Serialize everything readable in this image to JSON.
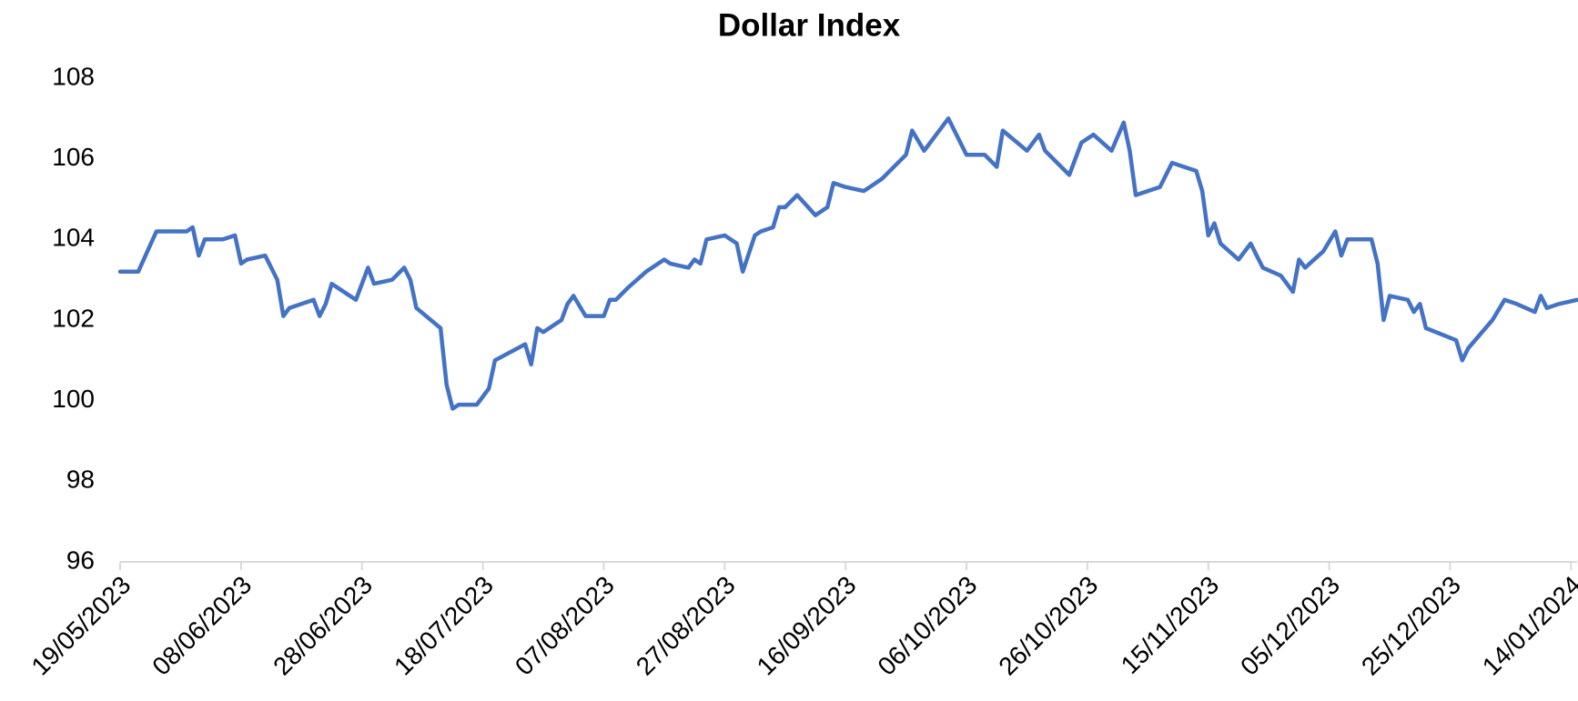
{
  "chart_data": {
    "type": "line",
    "title": "Dollar Index",
    "color": "#4472c4",
    "grid": false,
    "xlim": [
      "19/05/2023",
      "15/01/2024"
    ],
    "xticks": [
      "19/05/2023",
      "08/06/2023",
      "28/06/2023",
      "18/07/2023",
      "07/08/2023",
      "27/08/2023",
      "16/09/2023",
      "06/10/2023",
      "26/10/2023",
      "15/11/2023",
      "05/12/2023",
      "25/12/2023",
      "14/01/2024"
    ],
    "ylim": [
      96,
      108
    ],
    "yticks": [
      96,
      98,
      100,
      102,
      104,
      106,
      108
    ],
    "x": [
      "19/05/2023",
      "22/05/2023",
      "25/05/2023",
      "30/05/2023",
      "31/05/2023",
      "01/06/2023",
      "02/06/2023",
      "05/06/2023",
      "07/06/2023",
      "08/06/2023",
      "09/06/2023",
      "12/06/2023",
      "14/06/2023",
      "15/06/2023",
      "16/06/2023",
      "20/06/2023",
      "21/06/2023",
      "22/06/2023",
      "23/06/2023",
      "27/06/2023",
      "29/06/2023",
      "30/06/2023",
      "03/07/2023",
      "05/07/2023",
      "06/07/2023",
      "07/07/2023",
      "11/07/2023",
      "12/07/2023",
      "13/07/2023",
      "14/07/2023",
      "17/07/2023",
      "19/07/2023",
      "20/07/2023",
      "25/07/2023",
      "26/07/2023",
      "27/07/2023",
      "28/07/2023",
      "31/07/2023",
      "01/08/2023",
      "02/08/2023",
      "04/08/2023",
      "07/08/2023",
      "08/08/2023",
      "09/08/2023",
      "11/08/2023",
      "14/08/2023",
      "17/08/2023",
      "18/08/2023",
      "21/08/2023",
      "22/08/2023",
      "23/08/2023",
      "24/08/2023",
      "27/08/2023",
      "29/08/2023",
      "30/08/2023",
      "01/09/2023",
      "02/09/2023",
      "04/09/2023",
      "05/09/2023",
      "06/09/2023",
      "08/09/2023",
      "11/09/2023",
      "13/09/2023",
      "14/09/2023",
      "16/09/2023",
      "19/09/2023",
      "20/09/2023",
      "22/09/2023",
      "26/09/2023",
      "27/09/2023",
      "29/09/2023",
      "03/10/2023",
      "06/10/2023",
      "09/10/2023",
      "11/10/2023",
      "12/10/2023",
      "16/10/2023",
      "18/10/2023",
      "19/10/2023",
      "23/10/2023",
      "25/10/2023",
      "27/10/2023",
      "30/10/2023",
      "01/11/2023",
      "02/11/2023",
      "03/11/2023",
      "07/11/2023",
      "08/11/2023",
      "09/11/2023",
      "13/11/2023",
      "14/11/2023",
      "15/11/2023",
      "16/11/2023",
      "17/11/2023",
      "20/11/2023",
      "22/11/2023",
      "24/11/2023",
      "27/11/2023",
      "29/11/2023",
      "30/11/2023",
      "01/12/2023",
      "04/12/2023",
      "06/12/2023",
      "07/12/2023",
      "08/12/2023",
      "12/12/2023",
      "13/12/2023",
      "14/12/2023",
      "15/12/2023",
      "18/12/2023",
      "19/12/2023",
      "20/12/2023",
      "21/12/2023",
      "26/12/2023",
      "27/12/2023",
      "28/12/2023",
      "01/01/2024",
      "03/01/2024",
      "05/01/2024",
      "08/01/2024",
      "09/01/2024",
      "10/01/2024",
      "12/01/2024",
      "15/01/2024"
    ],
    "values": [
      103.2,
      103.2,
      104.2,
      104.2,
      104.3,
      103.6,
      104.0,
      104.0,
      104.1,
      103.4,
      103.5,
      103.6,
      103.0,
      102.1,
      102.3,
      102.5,
      102.1,
      102.4,
      102.9,
      102.5,
      103.3,
      102.9,
      103.0,
      103.3,
      103.0,
      102.3,
      101.8,
      100.4,
      99.8,
      99.9,
      99.9,
      100.3,
      101.0,
      101.4,
      100.9,
      101.8,
      101.7,
      102.0,
      102.4,
      102.6,
      102.1,
      102.1,
      102.5,
      102.5,
      102.8,
      103.2,
      103.5,
      103.4,
      103.3,
      103.5,
      103.4,
      104.0,
      104.1,
      103.9,
      103.2,
      104.1,
      104.2,
      104.3,
      104.8,
      104.8,
      105.1,
      104.6,
      104.8,
      105.4,
      105.3,
      105.2,
      105.3,
      105.5,
      106.1,
      106.7,
      106.2,
      107.0,
      106.1,
      106.1,
      105.8,
      106.7,
      106.2,
      106.6,
      106.2,
      105.6,
      106.4,
      106.6,
      106.2,
      106.9,
      106.2,
      105.1,
      105.3,
      105.6,
      105.9,
      105.7,
      105.2,
      104.1,
      104.4,
      103.9,
      103.5,
      103.9,
      103.3,
      103.1,
      102.7,
      103.5,
      103.3,
      103.7,
      104.2,
      103.6,
      104.0,
      104.0,
      103.4,
      102.0,
      102.6,
      102.5,
      102.2,
      102.4,
      101.8,
      101.5,
      101.0,
      101.3,
      102.0,
      102.5,
      102.4,
      102.2,
      102.6,
      102.3,
      102.4,
      102.5
    ]
  }
}
